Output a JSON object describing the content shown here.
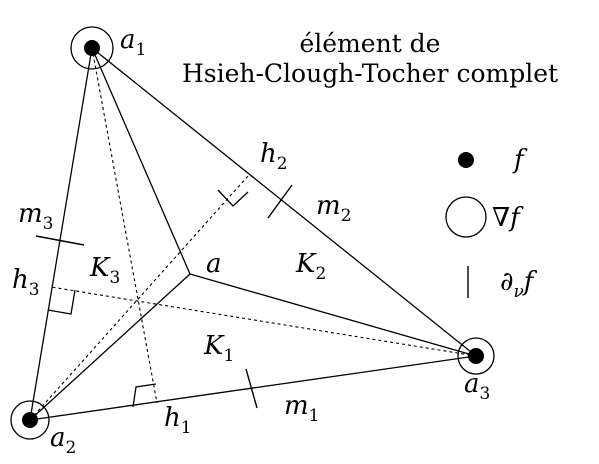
{
  "title": {
    "line1": "élément de",
    "line2": "Hsieh-Clough-Tocher complet"
  },
  "vertices": {
    "a1": {
      "base": "a",
      "sub": "1"
    },
    "a2": {
      "base": "a",
      "sub": "2"
    },
    "a3": {
      "base": "a",
      "sub": "3"
    },
    "a": {
      "base": "a"
    }
  },
  "subtriangles": {
    "K1": {
      "base": "K",
      "sub": "1"
    },
    "K2": {
      "base": "K",
      "sub": "2"
    },
    "K3": {
      "base": "K",
      "sub": "3"
    }
  },
  "midpoints": {
    "m1": {
      "base": "m",
      "sub": "1"
    },
    "m2": {
      "base": "m",
      "sub": "2"
    },
    "m3": {
      "base": "m",
      "sub": "3"
    }
  },
  "feet": {
    "h1": {
      "base": "h",
      "sub": "1"
    },
    "h2": {
      "base": "h",
      "sub": "2"
    },
    "h3": {
      "base": "h",
      "sub": "3"
    }
  },
  "legend": {
    "dot": "f",
    "circle": "∇f",
    "tick_base": "∂",
    "tick_sub": "ν",
    "tick_tail": "f"
  },
  "colors": {
    "ink": "#000000",
    "background": "#ffffff"
  }
}
